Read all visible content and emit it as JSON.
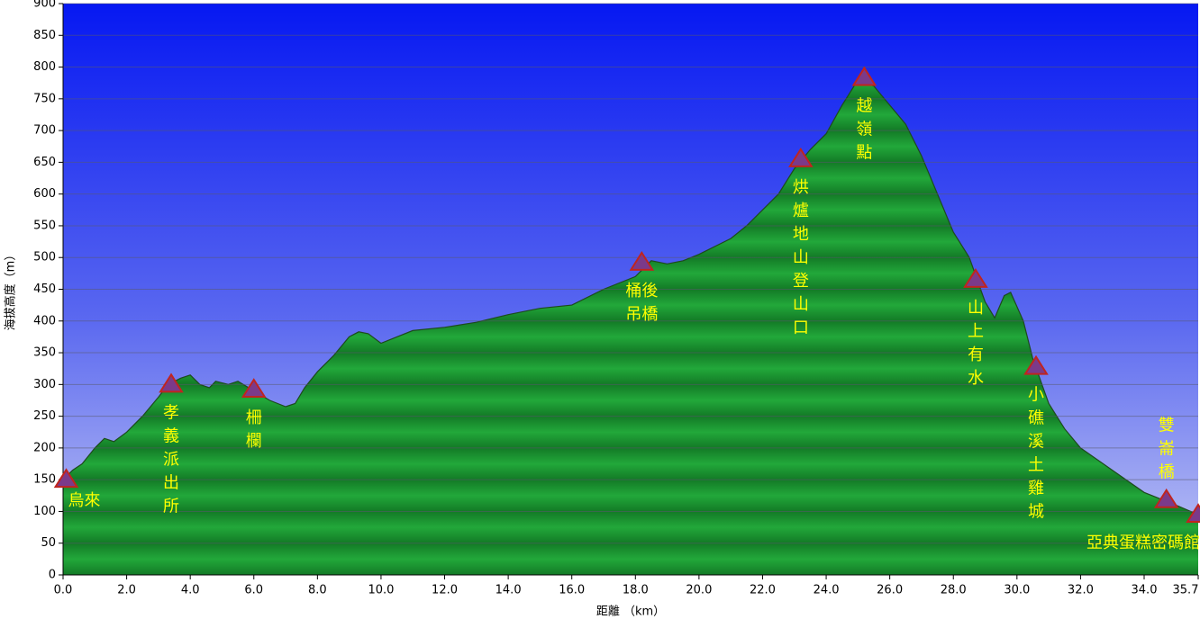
{
  "chart_data": {
    "type": "area",
    "x_label": "距離 （km）",
    "y_label": "海拔高度（m）",
    "x": [
      0,
      0.3,
      0.6,
      1,
      1.3,
      1.6,
      2,
      2.5,
      3,
      3.3,
      3.7,
      4,
      4.3,
      4.6,
      4.8,
      5.2,
      5.5,
      6,
      6.5,
      7,
      7.3,
      7.6,
      8,
      8.5,
      9,
      9.3,
      9.6,
      10,
      10.5,
      11,
      12,
      13,
      14,
      15,
      16,
      17,
      18,
      18.5,
      19,
      19.5,
      20,
      21,
      21.5,
      22,
      22.5,
      23,
      23.5,
      24,
      24.5,
      25,
      25.5,
      26,
      26.5,
      27,
      27.5,
      28,
      28.5,
      29,
      29.3,
      29.6,
      29.8,
      30.2,
      30.5,
      31,
      31.5,
      32,
      33,
      34,
      35,
      35.7
    ],
    "values": [
      150,
      165,
      175,
      200,
      215,
      210,
      225,
      250,
      280,
      300,
      310,
      315,
      300,
      295,
      305,
      300,
      305,
      290,
      275,
      265,
      270,
      295,
      320,
      345,
      375,
      383,
      380,
      365,
      375,
      385,
      390,
      398,
      410,
      420,
      425,
      450,
      470,
      495,
      490,
      495,
      505,
      530,
      550,
      575,
      600,
      640,
      670,
      695,
      740,
      780,
      770,
      740,
      710,
      660,
      600,
      540,
      500,
      430,
      405,
      440,
      445,
      400,
      340,
      270,
      230,
      200,
      165,
      130,
      110,
      95
    ],
    "color": "#22a83a",
    "xlim": [
      0,
      35.7
    ],
    "ylim": [
      0,
      900
    ],
    "xticks": [
      {
        "value": 0,
        "label": "0.0"
      },
      {
        "value": 2,
        "label": "2.0"
      },
      {
        "value": 4,
        "label": "4.0"
      },
      {
        "value": 6,
        "label": "6.0"
      },
      {
        "value": 8,
        "label": "8.0"
      },
      {
        "value": 10,
        "label": "10.0"
      },
      {
        "value": 12,
        "label": "12.0"
      },
      {
        "value": 14,
        "label": "14.0"
      },
      {
        "value": 16,
        "label": "16.0"
      },
      {
        "value": 18,
        "label": "18.0"
      },
      {
        "value": 20,
        "label": "20.0"
      },
      {
        "value": 22,
        "label": "22.0"
      },
      {
        "value": 24,
        "label": "24.0"
      },
      {
        "value": 26,
        "label": "26.0"
      },
      {
        "value": 28,
        "label": "28.0"
      },
      {
        "value": 30,
        "label": "30.0"
      },
      {
        "value": 32,
        "label": "32.0"
      },
      {
        "value": 34,
        "label": "34.0"
      },
      35.7
    ],
    "yticks": [
      0,
      50,
      100,
      150,
      200,
      250,
      300,
      350,
      400,
      450,
      500,
      550,
      600,
      650,
      700,
      750,
      800,
      850,
      900
    ],
    "grid": true,
    "waypoints": [
      {
        "x": 0.1,
        "y": 150,
        "lines": [
          "烏來"
        ]
      },
      {
        "x": 3.4,
        "y": 300,
        "lines": [
          "孝",
          "義",
          "派",
          "出",
          "所"
        ]
      },
      {
        "x": 6.0,
        "y": 292,
        "lines": [
          "柵",
          "欄"
        ]
      },
      {
        "x": 18.2,
        "y": 492,
        "lines": [
          "桶後",
          "吊橋"
        ]
      },
      {
        "x": 23.2,
        "y": 655,
        "lines": [
          "烘",
          "爐",
          "地",
          "山",
          "登",
          "山",
          "口"
        ]
      },
      {
        "x": 25.2,
        "y": 783,
        "lines": [
          "越",
          "嶺",
          "點"
        ]
      },
      {
        "x": 28.7,
        "y": 465,
        "lines": [
          "山",
          "上",
          "有",
          "水"
        ]
      },
      {
        "x": 30.6,
        "y": 328,
        "lines": [
          "小",
          "礁",
          "溪",
          "土",
          "雞",
          "城"
        ]
      },
      {
        "x": 34.7,
        "y": 118,
        "lines": [
          "雙",
          "崙",
          "橋"
        ]
      },
      {
        "x": 35.7,
        "y": 95,
        "lines": [
          "亞典蛋糕密碼館"
        ]
      }
    ]
  }
}
